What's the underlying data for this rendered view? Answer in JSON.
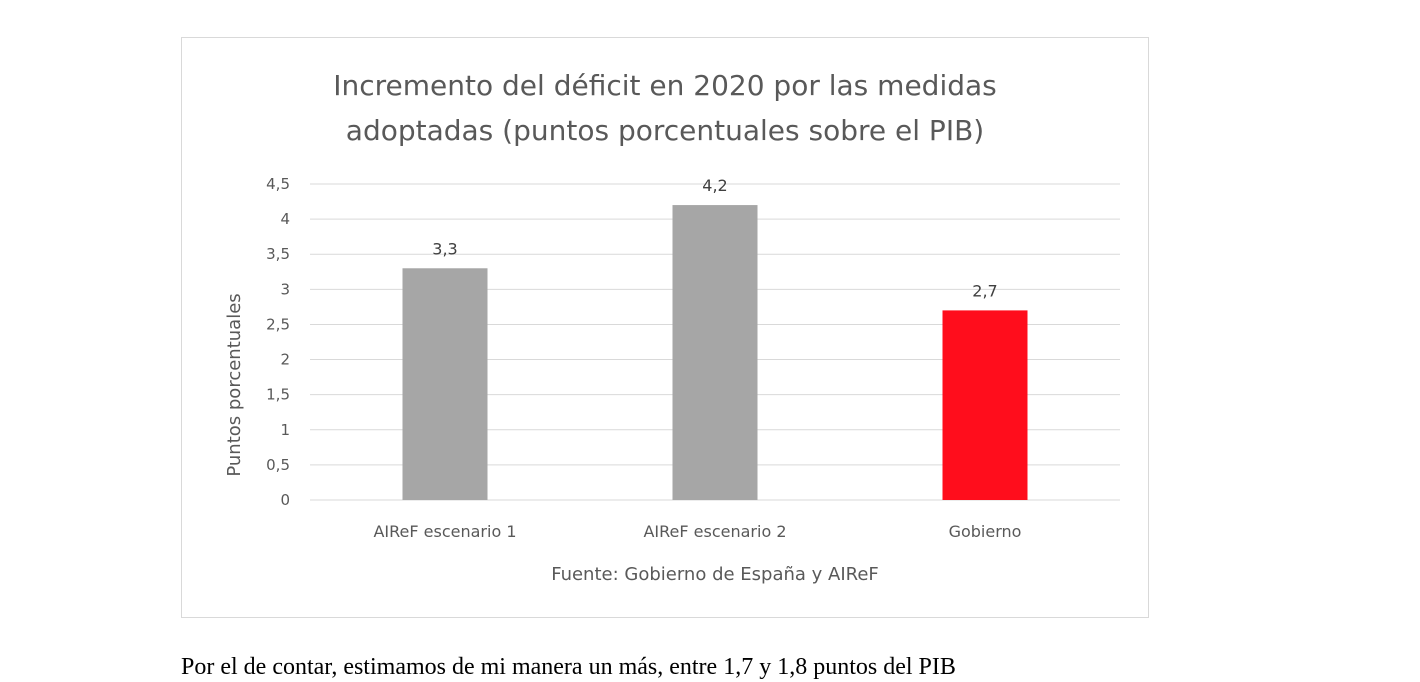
{
  "chart_data": {
    "type": "bar",
    "title_lines": [
      "Incremento del déficit en 2020 por las medidas",
      "adoptadas (puntos porcentuales sobre el PIB)"
    ],
    "categories": [
      "AIReF escenario 1",
      "AIReF escenario 2",
      "Gobierno"
    ],
    "values": [
      3.3,
      4.2,
      2.7
    ],
    "value_labels": [
      "3,3",
      "4,2",
      "2,7"
    ],
    "bar_colors": [
      "#a6a6a6",
      "#a6a6a6",
      "#ff0d1c"
    ],
    "ylabel": "Puntos porcentuales",
    "xlabel": "Fuente: Gobierno de España y AIReF",
    "ylim": [
      0,
      4.5
    ],
    "y_ticks": [
      0,
      0.5,
      1,
      1.5,
      2,
      2.5,
      3,
      3.5,
      4,
      4.5
    ],
    "y_tick_labels": [
      "0",
      "0,5",
      "1",
      "1,5",
      "2",
      "2,5",
      "3",
      "3,5",
      "4",
      "4,5"
    ],
    "grid": true
  },
  "body_text": "Por el de contar, estimamos de mi manera un más, entre 1,7 y 1,8 puntos del PIB"
}
